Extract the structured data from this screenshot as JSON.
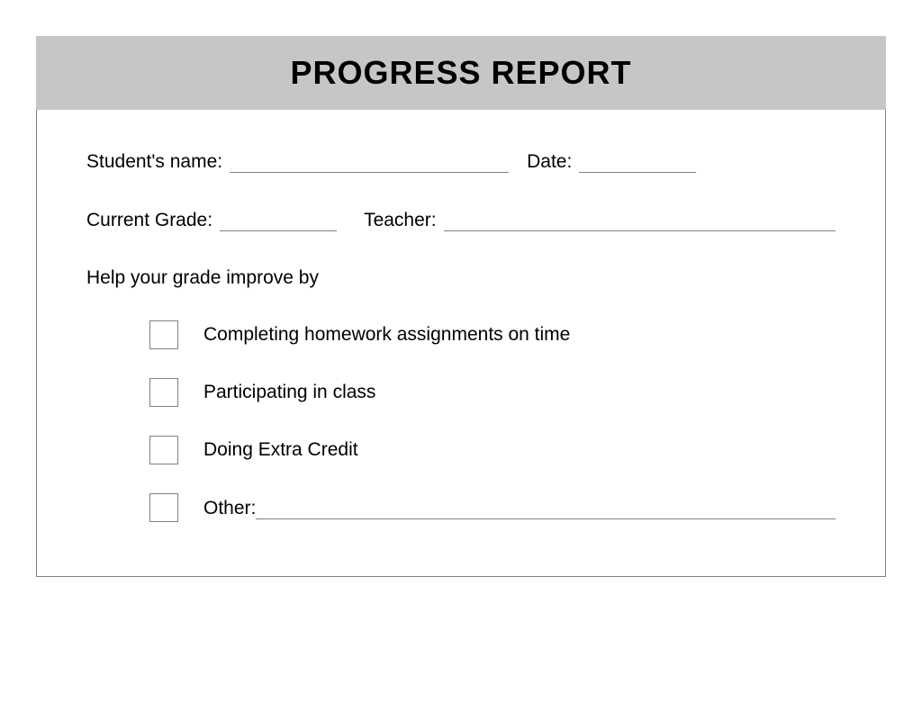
{
  "header": {
    "title": "PROGRESS REPORT",
    "background_color": "#c6c6c6",
    "title_fontsize": 36,
    "title_weight": "bold",
    "title_color": "#000000"
  },
  "form": {
    "border_color": "#808080",
    "background_color": "#ffffff",
    "label_fontsize": 21,
    "label_color": "#000000",
    "fields": {
      "student_name": {
        "label": "Student's name:",
        "value": "",
        "underline_width": 310
      },
      "date": {
        "label": "Date:",
        "value": "",
        "underline_width": 130
      },
      "current_grade": {
        "label": "Current Grade:",
        "value": "",
        "underline_width": 130
      },
      "teacher": {
        "label": "Teacher:",
        "value": ""
      }
    },
    "improvement_section": {
      "prompt": "Help your grade improve by",
      "checkbox": {
        "size": 32,
        "border_color": "#808080"
      },
      "items": [
        {
          "label": "Completing homework assignments on time",
          "checked": false
        },
        {
          "label": "Participating in class",
          "checked": false
        },
        {
          "label": "Doing Extra Credit",
          "checked": false
        }
      ],
      "other": {
        "label": "Other:",
        "value": "",
        "checked": false
      }
    }
  }
}
